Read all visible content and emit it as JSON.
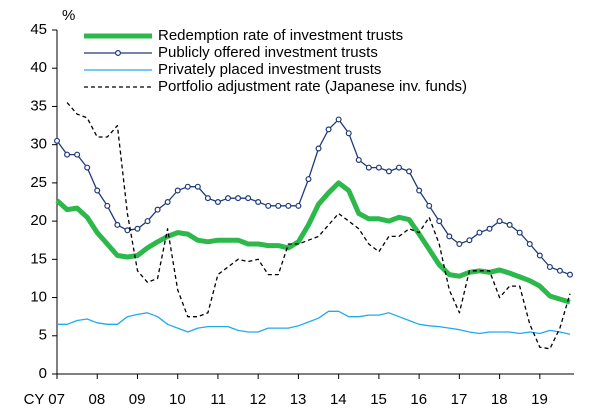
{
  "chart_data": {
    "type": "line",
    "y_unit": "%",
    "categories": [
      "CY 07",
      null,
      null,
      null,
      "08",
      null,
      null,
      null,
      "09",
      null,
      null,
      null,
      "10",
      null,
      null,
      null,
      "11",
      null,
      null,
      null,
      "12",
      null,
      null,
      null,
      "13",
      null,
      null,
      null,
      "14",
      null,
      null,
      null,
      "15",
      null,
      null,
      null,
      "16",
      null,
      null,
      null,
      "17",
      null,
      null,
      null,
      "18",
      null,
      null,
      null,
      "19",
      null,
      null,
      null
    ],
    "ylim": [
      0,
      45
    ],
    "yticks": [
      0,
      5,
      10,
      15,
      20,
      25,
      30,
      35,
      40,
      45
    ],
    "grid": false,
    "legend": "upper center",
    "series": [
      {
        "name": "Redemption rate of investment trusts",
        "color": "#2db84b",
        "style": "thick",
        "values": [
          22.7,
          21.5,
          21.7,
          20.5,
          18.5,
          17,
          15.5,
          15.3,
          15.5,
          16.5,
          17.3,
          18,
          18.5,
          18.3,
          17.5,
          17.3,
          17.5,
          17.5,
          17.5,
          17,
          17,
          16.8,
          16.8,
          16.5,
          17.3,
          19.5,
          22.2,
          23.7,
          25,
          24,
          21,
          20.3,
          20.3,
          20,
          20.5,
          20.2,
          18.3,
          16.3,
          14.3,
          13,
          12.8,
          13.3,
          13.5,
          13.3,
          13.6,
          13.2,
          12.7,
          12.2,
          11.5,
          10.2,
          9.8,
          9.4
        ]
      },
      {
        "name": "Publicly offered investment trusts",
        "color": "#1f3a7a",
        "style": "marker",
        "values": [
          30.5,
          28.7,
          28.7,
          27,
          24,
          22,
          19.5,
          18.8,
          19,
          20,
          21.5,
          22.5,
          24,
          24.5,
          24.5,
          23,
          22.5,
          23,
          23,
          23,
          22.5,
          22,
          22,
          22,
          22,
          25.5,
          29.5,
          32,
          33.3,
          31.5,
          28,
          27,
          27,
          26.5,
          27,
          26.5,
          24,
          22,
          20,
          18,
          17,
          17.5,
          18.5,
          19,
          20,
          19.5,
          18.5,
          17,
          15.5,
          14,
          13.5,
          13
        ]
      },
      {
        "name": "Privately placed investment trusts",
        "color": "#22aaee",
        "style": "thin",
        "values": [
          6.5,
          6.5,
          7,
          7.2,
          6.7,
          6.5,
          6.5,
          7.5,
          7.8,
          8,
          7.5,
          6.5,
          6,
          5.5,
          6,
          6.2,
          6.2,
          6.2,
          5.7,
          5.5,
          5.5,
          6,
          6,
          6,
          6.3,
          6.8,
          7.3,
          8.2,
          8.2,
          7.5,
          7.5,
          7.7,
          7.7,
          8,
          7.5,
          7,
          6.5,
          6.3,
          6.2,
          6,
          5.8,
          5.5,
          5.3,
          5.5,
          5.5,
          5.5,
          5.3,
          5.5,
          5.3,
          5.7,
          5.5,
          5.2
        ]
      },
      {
        "name": "Portfolio adjustment rate (Japanese inv. funds)",
        "color": "#000000",
        "style": "dashed",
        "values": [
          null,
          35.5,
          34,
          33.5,
          31,
          31,
          32.5,
          21,
          13.5,
          12,
          12.5,
          19,
          11,
          7.5,
          7.5,
          8,
          13,
          14,
          15,
          14.7,
          15,
          13,
          13,
          17,
          17,
          17.5,
          18,
          19.5,
          21,
          20,
          19,
          17,
          16,
          18,
          18,
          19,
          18.5,
          20.5,
          17,
          11,
          8,
          13.5,
          13.5,
          13.5,
          10,
          11.5,
          11.5,
          6.5,
          3.5,
          3.3,
          6,
          10.5
        ]
      }
    ]
  }
}
